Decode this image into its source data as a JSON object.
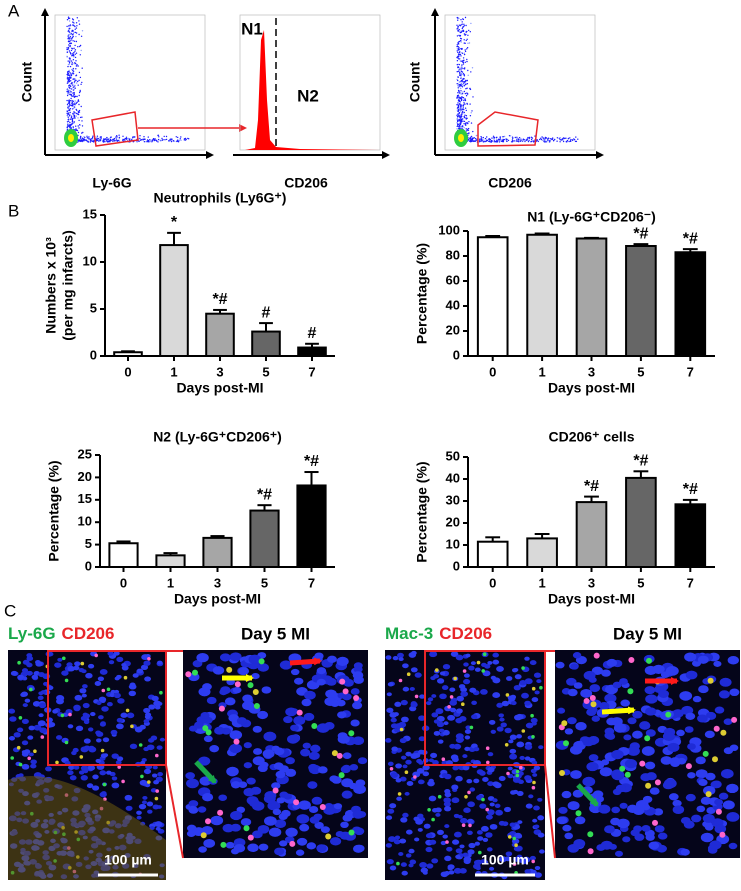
{
  "panel_labels": [
    "A",
    "B",
    "C"
  ],
  "panel_a": {
    "plots": [
      {
        "ylabel": "Count",
        "xlabel": "Ly-6G"
      },
      {
        "xlabel": "CD206",
        "gates": [
          "N1",
          "N2"
        ]
      },
      {
        "ylabel": "Count",
        "xlabel": "CD206"
      }
    ]
  },
  "chart_data": [
    {
      "type": "bar",
      "title": "Neutrophils (Ly6G⁺)",
      "ylabel": [
        "Numbers x 10³",
        "(per mg infarcts)"
      ],
      "xlabel": "Days post-MI",
      "categories": [
        "0",
        "1",
        "3",
        "5",
        "7"
      ],
      "values": [
        0.4,
        11.8,
        4.5,
        2.6,
        0.9
      ],
      "errors": [
        0.1,
        1.3,
        0.4,
        0.9,
        0.4
      ],
      "annotations": [
        null,
        "*",
        "*#",
        "#",
        "#"
      ],
      "colors": [
        "#ffffff",
        "#d9d9d9",
        "#a6a6a6",
        "#666666",
        "#000000"
      ],
      "ylim": [
        0,
        15
      ],
      "yticks": [
        0,
        5,
        10,
        15
      ]
    },
    {
      "type": "bar",
      "title": "N1 (Ly-6G⁺CD206⁻)",
      "ylabel": [
        "Percentage (%)"
      ],
      "xlabel": "Days post-MI",
      "categories": [
        "0",
        "1",
        "3",
        "5",
        "7"
      ],
      "values": [
        95,
        97,
        94,
        88,
        83
      ],
      "errors": [
        1,
        1,
        0.5,
        1.5,
        2.5
      ],
      "annotations": [
        null,
        null,
        null,
        "*#",
        "*#"
      ],
      "colors": [
        "#ffffff",
        "#d9d9d9",
        "#a6a6a6",
        "#666666",
        "#000000"
      ],
      "ylim": [
        0,
        100
      ],
      "yticks": [
        0,
        20,
        40,
        60,
        80,
        100
      ]
    },
    {
      "type": "bar",
      "title": "N2 (Ly-6G⁺CD206⁺)",
      "ylabel": [
        "Percentage (%)"
      ],
      "xlabel": "Days post-MI",
      "categories": [
        "0",
        "1",
        "3",
        "5",
        "7"
      ],
      "values": [
        5.3,
        2.6,
        6.5,
        12.6,
        18.2
      ],
      "errors": [
        0.4,
        0.5,
        0.4,
        1.2,
        3
      ],
      "annotations": [
        null,
        null,
        null,
        "*#",
        "*#"
      ],
      "colors": [
        "#ffffff",
        "#d9d9d9",
        "#a6a6a6",
        "#666666",
        "#000000"
      ],
      "ylim": [
        0,
        25
      ],
      "yticks": [
        0,
        5,
        10,
        15,
        20,
        25
      ]
    },
    {
      "type": "bar",
      "title": "CD206⁺ cells",
      "ylabel": [
        "Percentage (%)"
      ],
      "xlabel": "Days post-MI",
      "categories": [
        "0",
        "1",
        "3",
        "5",
        "7"
      ],
      "values": [
        11.5,
        13,
        29.5,
        40.5,
        28.5
      ],
      "errors": [
        2,
        2,
        2.5,
        3,
        2
      ],
      "annotations": [
        null,
        null,
        "*#",
        "*#",
        "*#"
      ],
      "colors": [
        "#ffffff",
        "#d9d9d9",
        "#a6a6a6",
        "#666666",
        "#000000"
      ],
      "ylim": [
        0,
        50
      ],
      "yticks": [
        0,
        10,
        20,
        30,
        40,
        50
      ]
    }
  ],
  "panel_c": {
    "images": [
      {
        "stain_green": "Ly-6G",
        "stain_red": "CD206",
        "zoom_title": "Day 5 MI",
        "scale": "100 µm"
      },
      {
        "stain_green": "Mac-3",
        "stain_red": "CD206",
        "zoom_title": "Day 5 MI",
        "scale": "100 µm"
      }
    ]
  }
}
